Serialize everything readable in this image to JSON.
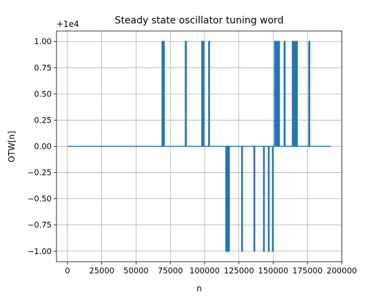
{
  "chart_data": {
    "type": "line",
    "title": "Steady state oscillator tuning word",
    "xlabel": "n",
    "ylabel": "OTW[n]",
    "offset_label": "+1e4",
    "offset": 10000,
    "xlim": [
      -8000,
      200000
    ],
    "ylim": [
      -1.1,
      1.1
    ],
    "grid": true,
    "line_color": "#1f77b4",
    "baseline": 0,
    "x_start": 0,
    "x_end": 192000,
    "x_ticks": [
      0,
      25000,
      50000,
      75000,
      100000,
      125000,
      150000,
      175000,
      200000
    ],
    "x_tick_labels": [
      "0",
      "25000",
      "50000",
      "75000",
      "100000",
      "125000",
      "150000",
      "175000",
      "200000"
    ],
    "y_ticks": [
      -1.0,
      -0.75,
      -0.5,
      -0.25,
      0.0,
      0.25,
      0.5,
      0.75,
      1.0
    ],
    "y_tick_labels": [
      "−1.00",
      "−0.75",
      "−0.50",
      "−0.25",
      "0.00",
      "0.25",
      "0.50",
      "0.75",
      "1.00"
    ],
    "spikes_up": [
      [
        69000,
        69700
      ],
      [
        70000,
        70500
      ],
      [
        86000,
        86600
      ],
      [
        98000,
        98600
      ],
      [
        98900,
        99400
      ],
      [
        103000,
        103500
      ],
      [
        151000,
        151500
      ],
      [
        152000,
        152500
      ],
      [
        153000,
        153500
      ],
      [
        154000,
        154500
      ],
      [
        158000,
        158600
      ],
      [
        164000,
        164500
      ],
      [
        165000,
        165500
      ],
      [
        166000,
        166500
      ],
      [
        167000,
        167500
      ],
      [
        176000,
        176600
      ]
    ],
    "spikes_down": [
      [
        115500,
        116000
      ],
      [
        116500,
        117000
      ],
      [
        117500,
        118000
      ],
      [
        127000,
        127500
      ],
      [
        136000,
        136500
      ],
      [
        143000,
        143500
      ],
      [
        146500,
        147000
      ],
      [
        149500,
        150000
      ]
    ]
  }
}
